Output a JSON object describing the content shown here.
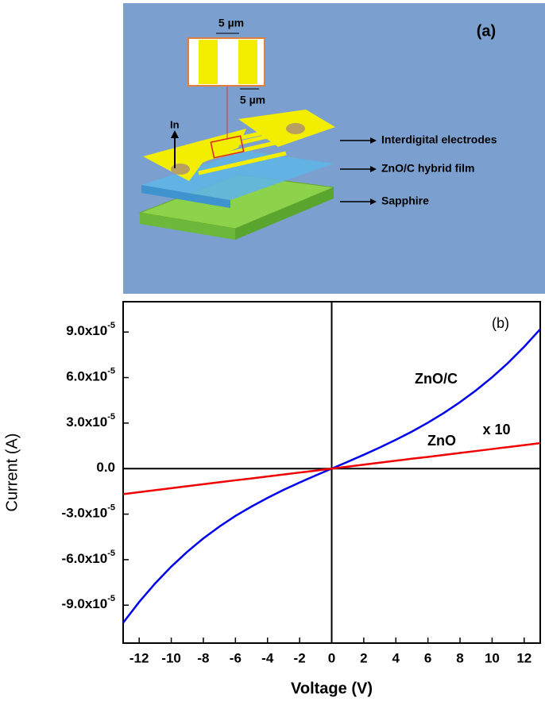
{
  "diagram": {
    "label": "(a)",
    "gap_width": "5 µm",
    "finger_width": "5 µm",
    "contact": "In",
    "layers": [
      "Interdigital electrodes",
      "ZnO/C hybrid film",
      "Sapphire"
    ]
  },
  "chart_data": {
    "type": "line",
    "panel_label": "(b)",
    "x_label": "Voltage (V)",
    "y_label": "Current (A)",
    "xlim": [
      -13,
      13
    ],
    "xticks": [
      -12,
      -10,
      -8,
      -6,
      -4,
      -2,
      0,
      2,
      4,
      6,
      8,
      10,
      12
    ],
    "ylim": [
      -0.000115,
      0.00011
    ],
    "yticks": [
      {
        "value": -9e-05,
        "label": "-9.0x10",
        "exponent": "-5"
      },
      {
        "value": -6e-05,
        "label": "-6.0x10",
        "exponent": "-5"
      },
      {
        "value": -3e-05,
        "label": "-3.0x10",
        "exponent": "-5"
      },
      {
        "value": 0,
        "label": "0.0"
      },
      {
        "value": 3e-05,
        "label": "3.0x10",
        "exponent": "-5"
      },
      {
        "value": 6e-05,
        "label": "6.0x10",
        "exponent": "-5"
      },
      {
        "value": 9e-05,
        "label": "9.0x10",
        "exponent": "-5"
      }
    ],
    "x": [
      -13,
      -12,
      -11,
      -10,
      -9,
      -8,
      -7,
      -6,
      -5,
      -4,
      -3,
      -2,
      -1,
      0,
      1,
      2,
      3,
      4,
      5,
      6,
      7,
      8,
      9,
      10,
      11,
      12,
      13
    ],
    "series": [
      {
        "name": "ZnO/C",
        "color": "#0000ee",
        "values": [
          -0.0001016,
          -8.79e-05,
          -7.56e-05,
          -6.46e-05,
          -5.48e-05,
          -4.6e-05,
          -3.82e-05,
          -3.12e-05,
          -2.5e-05,
          -1.93e-05,
          -1.4e-05,
          -9.16e-06,
          -4.52e-06,
          0,
          4.5e-06,
          9.12e-06,
          1.39e-05,
          1.9e-05,
          2.44e-05,
          3.03e-05,
          3.67e-05,
          4.38e-05,
          5.16e-05,
          6.02e-05,
          6.97e-05,
          8.03e-05,
          9.19e-05
        ]
      },
      {
        "name": "ZnO",
        "color": "#ee0000",
        "values": [
          -1.68e-05,
          -1.55e-05,
          -1.42e-05,
          -1.29e-05,
          -1.16e-05,
          -1.03e-05,
          -9e-06,
          -7.7e-06,
          -6.5e-06,
          -5.2e-06,
          -3.9e-06,
          -2.6e-06,
          -1.3e-06,
          0,
          1.3e-06,
          2.6e-06,
          3.9e-06,
          5.2e-06,
          6.5e-06,
          7.7e-06,
          9e-06,
          1.03e-05,
          1.16e-05,
          1.29e-05,
          1.42e-05,
          1.55e-05,
          1.68e-05
        ]
      }
    ],
    "annotations": [
      {
        "text": "x 10"
      }
    ]
  }
}
